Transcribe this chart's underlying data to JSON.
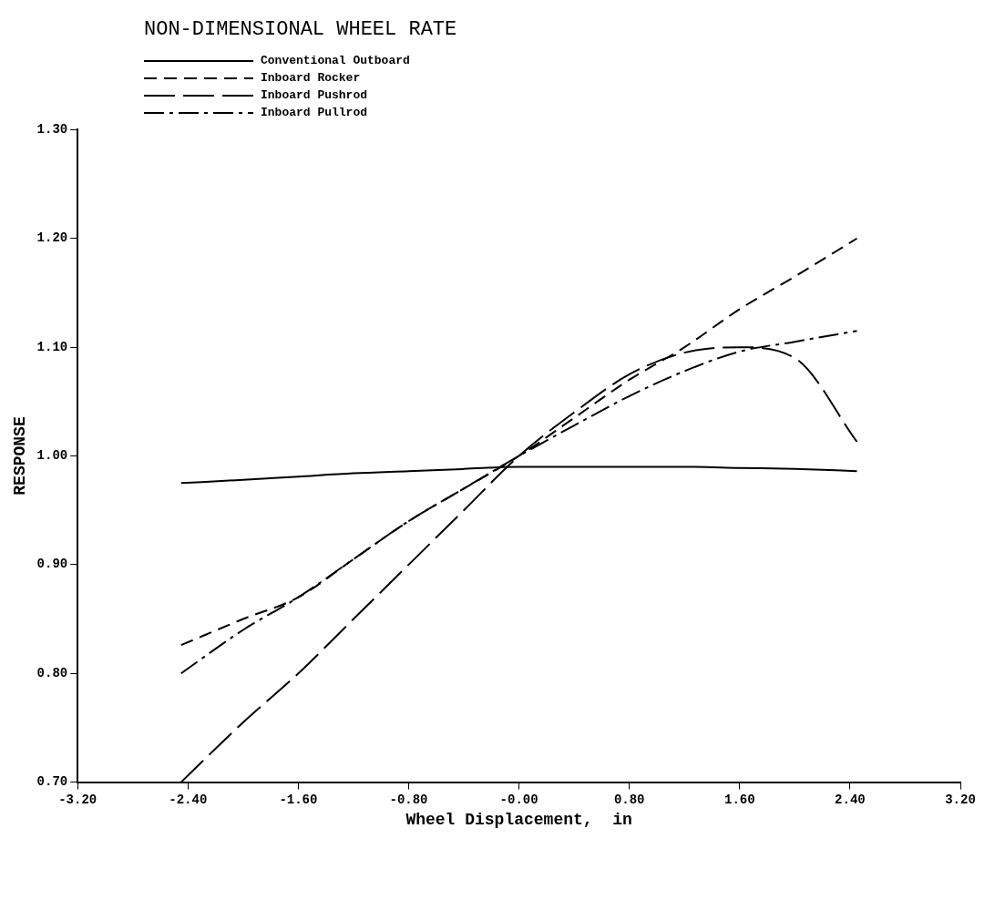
{
  "chart_data": {
    "type": "line",
    "title": "NON-DIMENSIONAL WHEEL RATE",
    "xlabel": "Wheel Displacement,  in",
    "ylabel": "RESPONSE",
    "xlim": [
      -3.2,
      3.2
    ],
    "ylim": [
      0.7,
      1.3
    ],
    "xticks": [
      {
        "value": -3.2,
        "label": "-3.20"
      },
      {
        "value": -2.4,
        "label": "-2.40"
      },
      {
        "value": -1.6,
        "label": "-1.60"
      },
      {
        "value": -0.8,
        "label": "-0.80"
      },
      {
        "value": 0,
        "label": "-0.00"
      },
      {
        "value": 0.8,
        "label": "0.80"
      },
      {
        "value": 1.6,
        "label": "1.60"
      },
      {
        "value": 2.4,
        "label": "2.40"
      },
      {
        "value": 3.2,
        "label": "3.20"
      }
    ],
    "yticks": [
      {
        "value": 0.7,
        "label": "0.70"
      },
      {
        "value": 0.8,
        "label": "0.80"
      },
      {
        "value": 0.9,
        "label": "0.90"
      },
      {
        "value": 1.0,
        "label": "1.00"
      },
      {
        "value": 1.1,
        "label": "1.10"
      },
      {
        "value": 1.2,
        "label": "1.20"
      },
      {
        "value": 1.3,
        "label": "1.30"
      }
    ],
    "x": [
      -2.45,
      -2.0,
      -1.6,
      -1.2,
      -0.8,
      -0.4,
      0,
      0.4,
      0.8,
      1.2,
      1.6,
      2.0,
      2.45
    ],
    "grid": false,
    "legend": "top left",
    "marker": "none",
    "series": [
      {
        "name": "Conventional Outboard",
        "color": "#000000",
        "line_style": "solid",
        "values": [
          0.975,
          0.978,
          0.981,
          0.984,
          0.986,
          0.988,
          0.99,
          0.99,
          0.99,
          0.99,
          0.989,
          0.988,
          0.986
        ]
      },
      {
        "name": "Inboard Rocker",
        "color": "#000000",
        "line_style": "dashed",
        "values": [
          0.826,
          0.85,
          0.87,
          0.905,
          0.94,
          0.97,
          1.0,
          1.035,
          1.07,
          1.1,
          1.135,
          1.165,
          1.2
        ]
      },
      {
        "name": "Inboard Pushrod",
        "color": "#000000",
        "line_style": "longdash",
        "values": [
          0.7,
          0.755,
          0.8,
          0.85,
          0.9,
          0.95,
          1.0,
          1.04,
          1.075,
          1.095,
          1.1,
          1.09,
          1.013
        ]
      },
      {
        "name": "Inboard Pullrod",
        "color": "#000000",
        "line_style": "dashdot",
        "values": [
          0.8,
          0.84,
          0.87,
          0.905,
          0.94,
          0.97,
          1.0,
          1.028,
          1.055,
          1.078,
          1.096,
          1.105,
          1.115
        ]
      }
    ]
  }
}
